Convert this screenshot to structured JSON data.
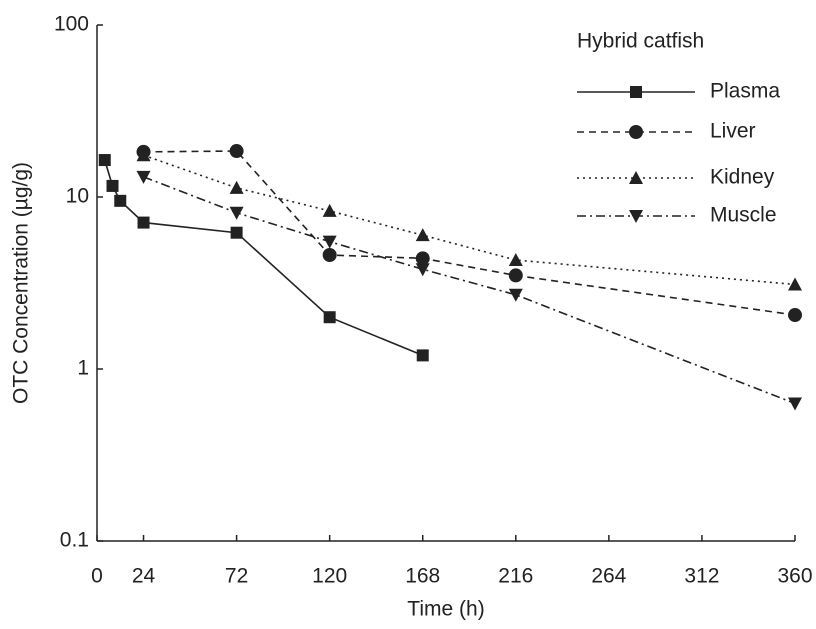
{
  "chart_data": {
    "type": "line",
    "xlabel": "Time (h)",
    "ylabel": "OTC Concentration (µg/g)",
    "legend_title": "Hybrid catfish",
    "legend_position": "upper right",
    "log_y": true,
    "xlim": [
      0,
      360
    ],
    "xticks": [
      0,
      24,
      72,
      120,
      168,
      216,
      264,
      312,
      360
    ],
    "ylim": [
      0.1,
      100
    ],
    "yticks": [
      0.1,
      1,
      10,
      100
    ],
    "series": [
      {
        "name": "Plasma",
        "color": "#222222",
        "linestyle": "solid",
        "marker": "square",
        "x": [
          4,
          8,
          12,
          24,
          72,
          120,
          168
        ],
        "values": [
          16.4,
          11.6,
          9.5,
          7.1,
          6.2,
          2.0,
          1.2
        ]
      },
      {
        "name": "Liver",
        "color": "#222222",
        "linestyle": "dashed",
        "marker": "circle",
        "x": [
          24,
          72,
          120,
          168,
          216,
          360
        ],
        "values": [
          18.3,
          18.5,
          4.6,
          4.4,
          3.5,
          2.06
        ]
      },
      {
        "name": "Kidney",
        "color": "#222222",
        "linestyle": "dotted",
        "marker": "triangle",
        "x": [
          24,
          72,
          120,
          168,
          216,
          360
        ],
        "values": [
          17.5,
          11.3,
          8.3,
          6.0,
          4.3,
          3.1
        ]
      },
      {
        "name": "Muscle",
        "color": "#222222",
        "linestyle": "dashdot",
        "marker": "triangle-down",
        "x": [
          24,
          72,
          120,
          168,
          216,
          360
        ],
        "values": [
          13.1,
          8.1,
          5.5,
          3.8,
          2.7,
          0.63
        ]
      }
    ]
  }
}
